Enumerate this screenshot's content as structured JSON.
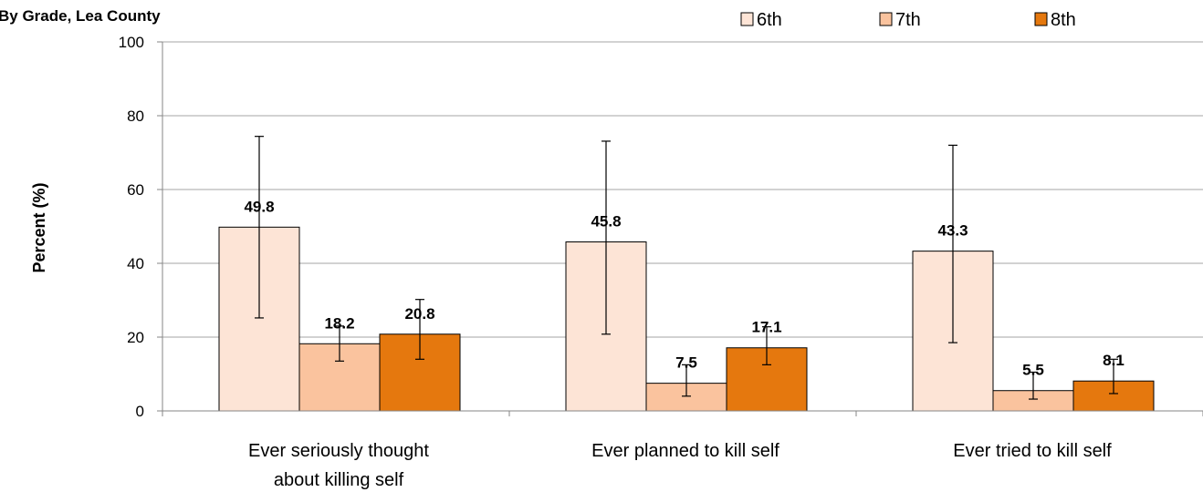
{
  "chart_data": {
    "type": "bar",
    "title": "By Grade, Lea County",
    "ylabel": "Percent (%)",
    "ylim": [
      0,
      100
    ],
    "yticks": [
      0,
      20,
      40,
      60,
      80,
      100
    ],
    "grid": true,
    "legend_position": "top-right",
    "categories": [
      [
        "Ever seriously thought",
        "about killing self"
      ],
      [
        "Ever planned to kill self"
      ],
      [
        "Ever tried to kill self"
      ]
    ],
    "series": [
      {
        "name": "6th",
        "color": "#FDE4D6",
        "values": [
          49.8,
          45.8,
          43.3
        ],
        "ci_low": [
          25.2,
          20.8,
          18.5
        ],
        "ci_high": [
          74.4,
          73.1,
          72.0
        ]
      },
      {
        "name": "7th",
        "color": "#FAC39E",
        "values": [
          18.2,
          7.5,
          5.5
        ],
        "ci_low": [
          13.5,
          4.0,
          3.2
        ],
        "ci_high": [
          23.0,
          12.5,
          10.5
        ]
      },
      {
        "name": "8th",
        "color": "#E5780E",
        "values": [
          20.8,
          17.1,
          8.1
        ],
        "ci_low": [
          14.0,
          12.5,
          4.7
        ],
        "ci_high": [
          30.2,
          22.8,
          14.0
        ]
      }
    ]
  }
}
